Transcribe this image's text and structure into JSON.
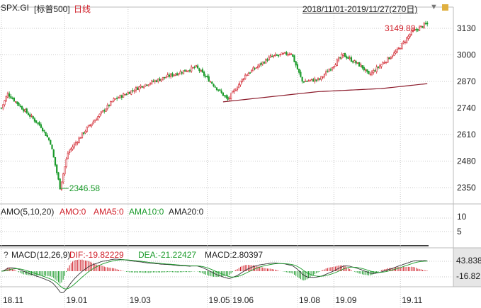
{
  "header": {
    "symbol": "SPX.GI",
    "name": "[标普500]",
    "period": "日线",
    "range": "2018/11/01-2019/11/27(270日)"
  },
  "amo": {
    "title": "AMO(5,10,20)",
    "amo": "AMO:0",
    "ama5": "AMA5:0",
    "ama10": "AMA10:0",
    "ama20": "AMA20:0",
    "ticks": [
      "10",
      "5"
    ]
  },
  "macd": {
    "help": "?",
    "title": "MACD(12,26,9)",
    "dif": "DIF:-19.82229",
    "dea": "DEA:-21.22427",
    "macd": "MACD:2.80397",
    "ticks": [
      "43.838",
      "-16.82"
    ]
  },
  "colors": {
    "up": "#d0202a",
    "down": "#1a9a2a",
    "ma": "#8b1a2a",
    "grid": "#c8c8c8"
  },
  "chart_data": {
    "type": "candlestick",
    "title": "SPX.GI [标普500] 日线",
    "days": 270,
    "y_ticks": [
      3130,
      3000,
      2870,
      2740,
      2610,
      2480,
      2350
    ],
    "ylim": [
      2310,
      3170
    ],
    "x_ticks": [
      "18.11",
      "19.01",
      "19.03",
      "19.05",
      "19.06",
      "19.08",
      "19.09",
      "19.11"
    ],
    "x_tick_days": [
      0,
      40,
      80,
      130,
      145,
      187,
      210,
      252
    ],
    "close_keypoints": [
      [
        0,
        2740
      ],
      [
        4,
        2810
      ],
      [
        13,
        2740
      ],
      [
        25,
        2650
      ],
      [
        31,
        2570
      ],
      [
        37,
        2350
      ],
      [
        42,
        2520
      ],
      [
        54,
        2640
      ],
      [
        71,
        2780
      ],
      [
        89,
        2850
      ],
      [
        107,
        2900
      ],
      [
        123,
        2940
      ],
      [
        132,
        2870
      ],
      [
        143,
        2780
      ],
      [
        154,
        2900
      ],
      [
        170,
        2990
      ],
      [
        183,
        3010
      ],
      [
        190,
        2870
      ],
      [
        201,
        2880
      ],
      [
        216,
        3000
      ],
      [
        228,
        2940
      ],
      [
        232,
        2900
      ],
      [
        250,
        3020
      ],
      [
        259,
        3110
      ],
      [
        268,
        3150
      ]
    ],
    "ma_keypoints": [
      [
        140,
        2770
      ],
      [
        200,
        2820
      ],
      [
        240,
        2835
      ],
      [
        270,
        2860
      ]
    ],
    "annotations": {
      "low": "2346.58",
      "high": "3149.88"
    }
  }
}
